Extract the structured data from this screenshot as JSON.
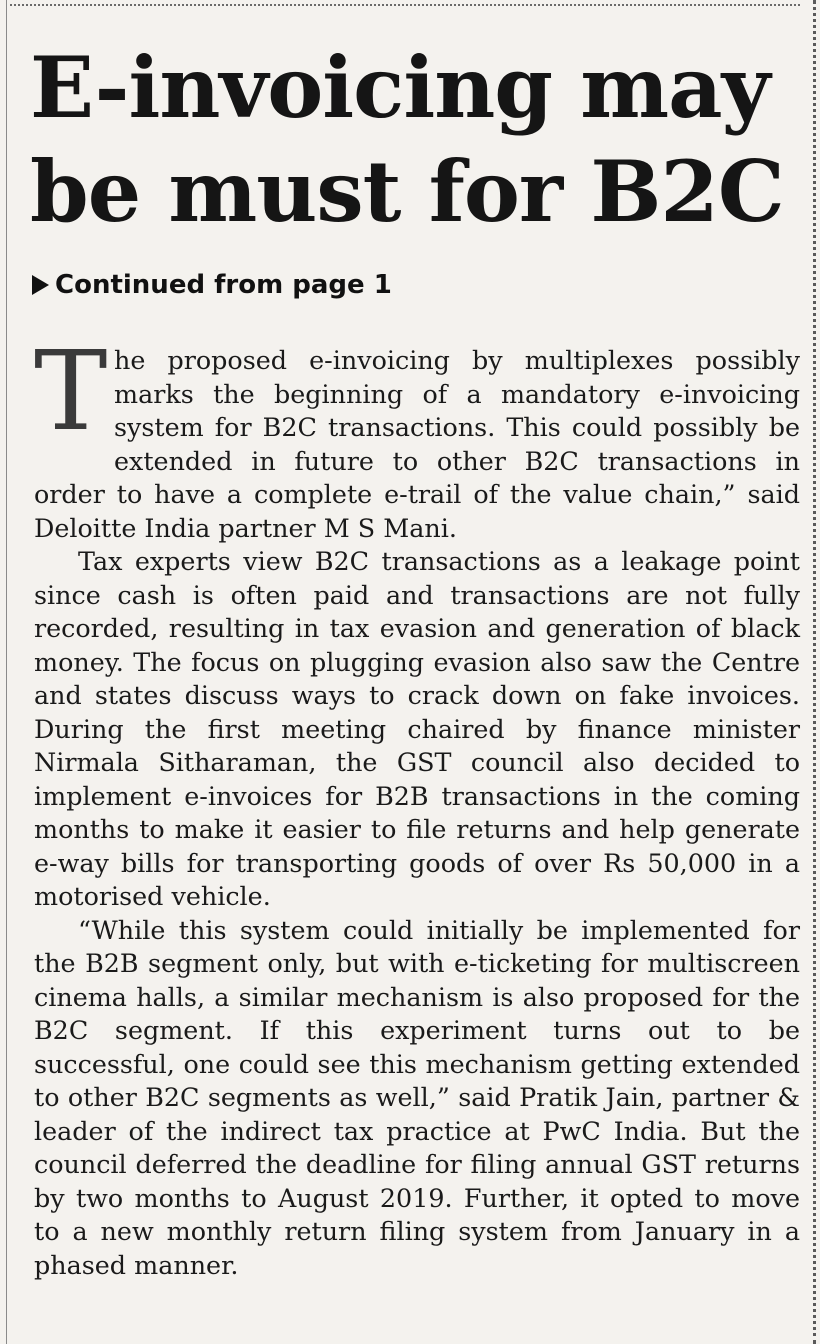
{
  "article": {
    "headline": "E-invoicing may be must for B2C",
    "continued_label": "Continued from page 1",
    "dropcap": "T",
    "paragraphs": [
      "he proposed e-invoicing by multiplexes possibly marks the beginning of a mandatory e-invoicing system for B2C transactions. This could possibly be extended in future to other B2C transactions in order to have a complete e-trail of the value chain,” said Deloitte India partner M S Mani.",
      "Tax experts view B2C transactions as a leakage point since cash is often paid and transactions are not fully recorded, resulting in tax evasion and generation of black money. The focus on plugging evasion also saw the Centre and states discuss ways to crack down on fake invoices. During the first meeting chaired by finance minister Nirmala Sitharaman, the GST council also decided to implement e-invoices for B2B transactions in the coming months to make it easier to file returns and help generate e-way bills for transporting goods of over Rs 50,000 in a motorised vehicle.",
      "“While this system could initially be implemented for the B2B segment only, but with e-ticketing for multiscreen cinema halls, a similar mechanism is also proposed for the B2C segment. If this experiment turns out to be successful, one could see this mechanism getting extended to other B2C segments as well,” said Pratik Jain, partner & leader of the indirect tax practice at PwC India. But the council deferred the deadline for filing annual GST returns by two months to August 2019. Further, it opted to move to a new monthly return filing system from January in a phased manner."
    ]
  }
}
